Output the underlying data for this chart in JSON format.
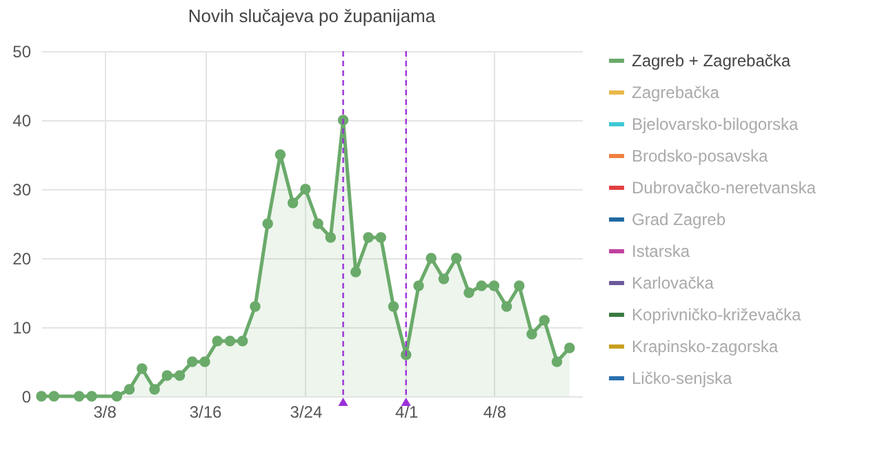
{
  "chart_data": {
    "type": "area",
    "title": "Novih slučajeva po županijama",
    "x": [
      "--03-03",
      "--03-04",
      "--03-06",
      "--03-07",
      "--03-09",
      "--03-10",
      "--03-11",
      "--03-12",
      "--03-13",
      "--03-14",
      "--03-15",
      "--03-16",
      "--03-17",
      "--03-18",
      "--03-19",
      "--03-20",
      "--03-21",
      "--03-22",
      "--03-23",
      "--03-24",
      "--03-25",
      "--03-26",
      "--03-27",
      "--03-28",
      "--03-29",
      "--03-30",
      "--03-31",
      "--04-01",
      "--04-02",
      "--04-03",
      "--04-04",
      "--04-05",
      "--04-06",
      "--04-07",
      "--04-08",
      "--04-09",
      "--04-10",
      "--04-11",
      "--04-12",
      "--04-13",
      "--04-14"
    ],
    "series": [
      {
        "name": "Zagreb + Zagrebačka",
        "color": "#6aaa6a",
        "values": [
          0,
          0,
          0,
          0,
          0,
          1,
          4,
          1,
          3,
          3,
          5,
          5,
          8,
          8,
          8,
          13,
          25,
          35,
          28,
          30,
          25,
          23,
          40,
          18,
          23,
          23,
          13,
          6,
          16,
          20,
          17,
          20,
          15,
          16,
          16,
          13,
          16,
          9,
          11,
          5,
          7
        ]
      },
      {
        "name": "Zagrebačka",
        "color": "#e8b84a",
        "values": [
          null,
          null,
          null,
          null,
          null,
          null,
          null,
          null,
          null,
          null,
          null,
          null,
          null,
          null,
          null,
          null,
          null,
          null,
          null,
          null,
          null,
          null,
          null,
          null,
          null,
          null,
          null,
          null,
          null,
          null,
          null,
          null,
          null,
          null,
          null,
          null,
          null,
          null,
          null,
          null,
          null
        ]
      },
      {
        "name": "Bjelovarsko-bilogorska",
        "color": "#3ec9d6",
        "values": [
          null,
          null,
          null,
          null,
          null,
          null,
          null,
          null,
          null,
          null,
          null,
          null,
          null,
          null,
          null,
          null,
          null,
          null,
          null,
          null,
          null,
          null,
          null,
          null,
          null,
          null,
          null,
          null,
          null,
          null,
          null,
          null,
          null,
          null,
          null,
          null,
          null,
          null,
          null,
          null,
          null
        ]
      },
      {
        "name": "Brodsko-posavska",
        "color": "#f08040",
        "values": [
          null,
          null,
          null,
          null,
          null,
          null,
          null,
          null,
          null,
          null,
          null,
          null,
          null,
          null,
          null,
          null,
          null,
          null,
          null,
          null,
          null,
          null,
          null,
          null,
          null,
          null,
          null,
          null,
          null,
          null,
          null,
          null,
          null,
          null,
          null,
          null,
          null,
          null,
          null,
          null,
          null
        ]
      },
      {
        "name": "Dubrovačko-neretvanska",
        "color": "#e04040",
        "values": [
          null,
          null,
          null,
          null,
          null,
          null,
          null,
          null,
          null,
          null,
          null,
          null,
          null,
          null,
          null,
          null,
          null,
          null,
          null,
          null,
          null,
          null,
          null,
          null,
          null,
          null,
          null,
          null,
          null,
          null,
          null,
          null,
          null,
          null,
          null,
          null,
          null,
          null,
          null,
          null,
          null
        ]
      },
      {
        "name": "Grad Zagreb",
        "color": "#1f6aa0",
        "values": [
          null,
          null,
          null,
          null,
          null,
          null,
          null,
          null,
          null,
          null,
          null,
          null,
          null,
          null,
          null,
          null,
          null,
          null,
          null,
          null,
          null,
          null,
          null,
          null,
          null,
          null,
          null,
          null,
          null,
          null,
          null,
          null,
          null,
          null,
          null,
          null,
          null,
          null,
          null,
          null,
          null
        ]
      },
      {
        "name": "Istarska",
        "color": "#c040a0",
        "values": [
          null,
          null,
          null,
          null,
          null,
          null,
          null,
          null,
          null,
          null,
          null,
          null,
          null,
          null,
          null,
          null,
          null,
          null,
          null,
          null,
          null,
          null,
          null,
          null,
          null,
          null,
          null,
          null,
          null,
          null,
          null,
          null,
          null,
          null,
          null,
          null,
          null,
          null,
          null,
          null,
          null
        ]
      },
      {
        "name": "Karlovačka",
        "color": "#6a5a9a",
        "values": [
          null,
          null,
          null,
          null,
          null,
          null,
          null,
          null,
          null,
          null,
          null,
          null,
          null,
          null,
          null,
          null,
          null,
          null,
          null,
          null,
          null,
          null,
          null,
          null,
          null,
          null,
          null,
          null,
          null,
          null,
          null,
          null,
          null,
          null,
          null,
          null,
          null,
          null,
          null,
          null,
          null
        ]
      },
      {
        "name": "Koprivničko-križevačka",
        "color": "#3a7a40",
        "values": [
          null,
          null,
          null,
          null,
          null,
          null,
          null,
          null,
          null,
          null,
          null,
          null,
          null,
          null,
          null,
          null,
          null,
          null,
          null,
          null,
          null,
          null,
          null,
          null,
          null,
          null,
          null,
          null,
          null,
          null,
          null,
          null,
          null,
          null,
          null,
          null,
          null,
          null,
          null,
          null,
          null
        ]
      },
      {
        "name": "Krapinsko-zagorska",
        "color": "#c8a020",
        "values": [
          null,
          null,
          null,
          null,
          null,
          null,
          null,
          null,
          null,
          null,
          null,
          null,
          null,
          null,
          null,
          null,
          null,
          null,
          null,
          null,
          null,
          null,
          null,
          null,
          null,
          null,
          null,
          null,
          null,
          null,
          null,
          null,
          null,
          null,
          null,
          null,
          null,
          null,
          null,
          null,
          null
        ]
      },
      {
        "name": "Ličko-senjska",
        "color": "#2a70b0",
        "values": [
          null,
          null,
          null,
          null,
          null,
          null,
          null,
          null,
          null,
          null,
          null,
          null,
          null,
          null,
          null,
          null,
          null,
          null,
          null,
          null,
          null,
          null,
          null,
          null,
          null,
          null,
          null,
          null,
          null,
          null,
          null,
          null,
          null,
          null,
          null,
          null,
          null,
          null,
          null,
          null,
          null
        ]
      }
    ],
    "xlim": [
      "--03-03",
      "--04-15"
    ],
    "xticks": [
      {
        "value": "--03-08",
        "label": "3/8"
      },
      {
        "value": "--03-16",
        "label": "3/16"
      },
      {
        "value": "--03-24",
        "label": "3/24"
      },
      {
        "value": "--04-01",
        "label": "4/1"
      },
      {
        "value": "--04-08",
        "label": "4/8"
      }
    ],
    "ylim": [
      0,
      50
    ],
    "yticks": [
      0,
      10,
      20,
      30,
      40,
      50
    ],
    "ref_lines": [
      {
        "axis": "x",
        "value": "--03-27",
        "color": "#9b30d9",
        "line_style": "dashed"
      },
      {
        "axis": "x",
        "value": "--04-01",
        "color": "#9b30d9",
        "line_style": "dashed"
      }
    ],
    "grid": true,
    "legend": "right",
    "marker": "circle",
    "line_style": "solid"
  }
}
